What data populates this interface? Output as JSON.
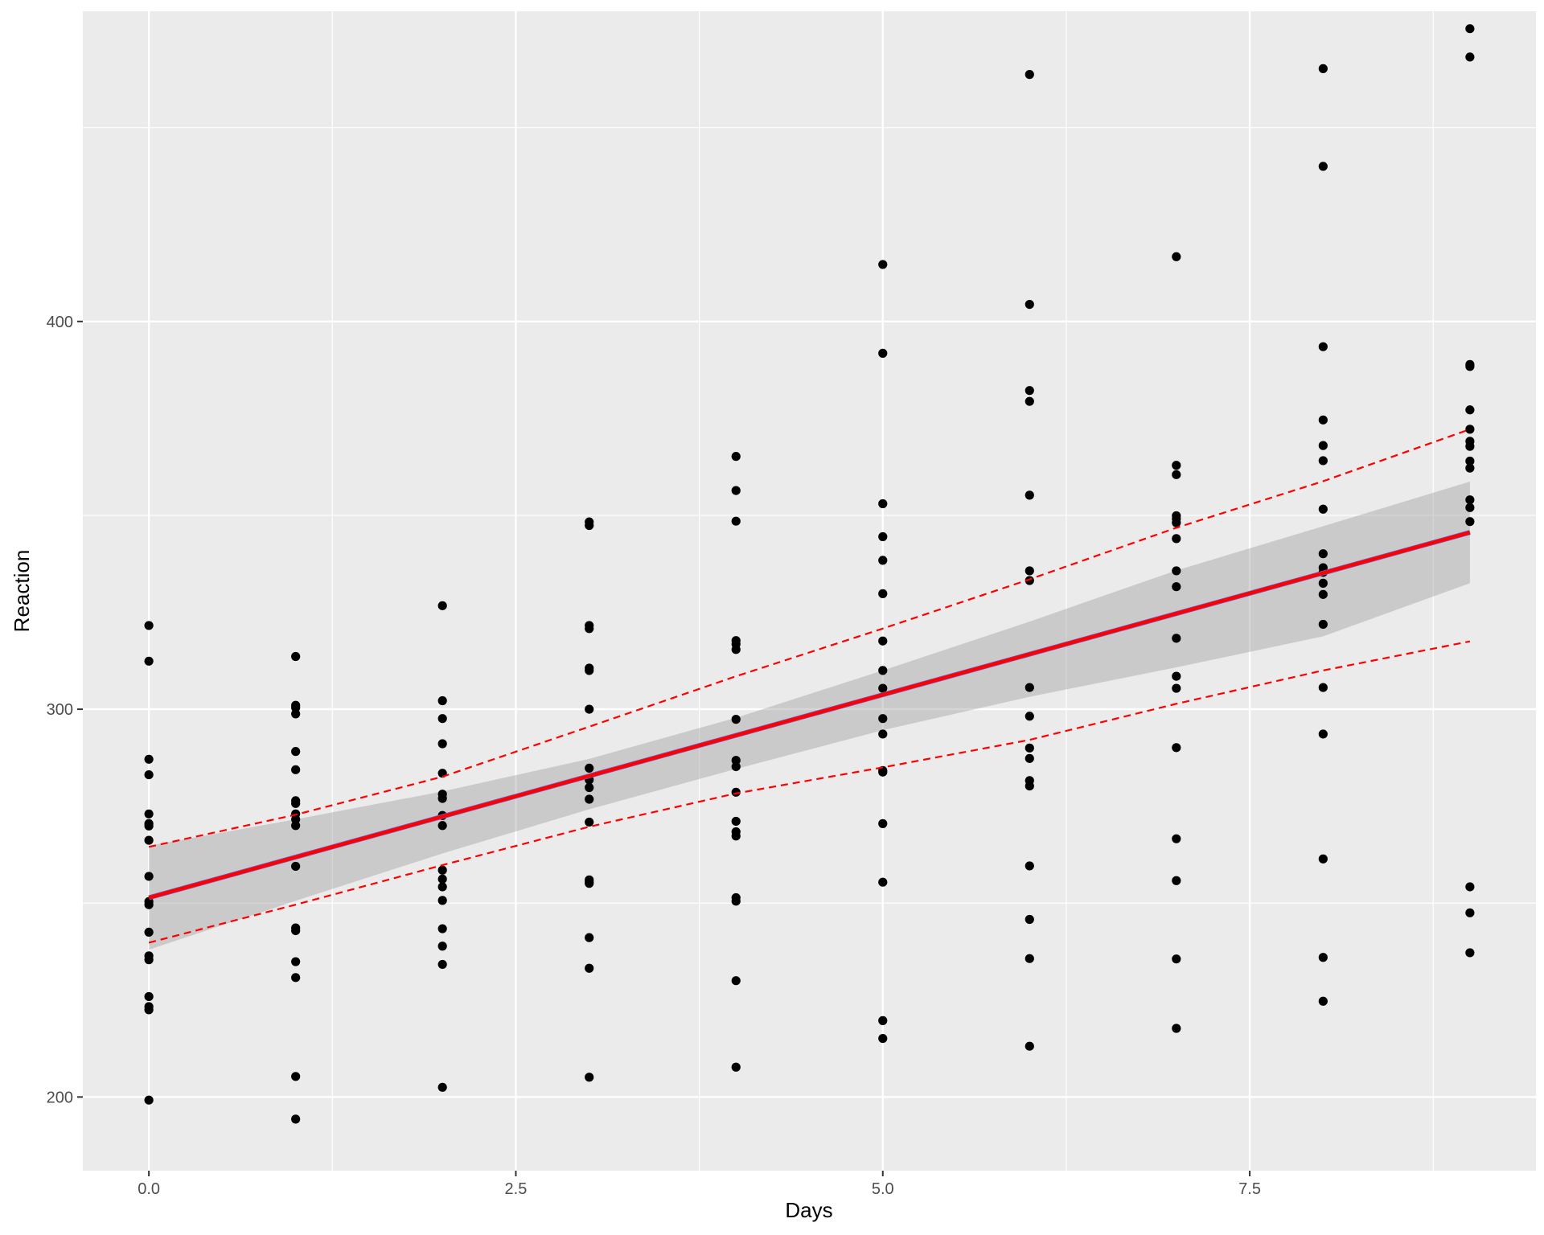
{
  "chart_data": {
    "type": "scatter",
    "title": "",
    "xlabel": "Days",
    "ylabel": "Reaction",
    "xlim": [
      -0.45,
      9.45
    ],
    "ylim": [
      181,
      480
    ],
    "x_ticks": [
      0,
      2.5,
      5,
      7.5
    ],
    "x_tick_labels": [
      "0.0",
      "2.5",
      "5.0",
      "7.5"
    ],
    "x_minor_ticks": [
      1.25,
      3.75,
      6.25,
      8.75
    ],
    "y_ticks": [
      200,
      300,
      400
    ],
    "y_tick_labels": [
      "200",
      "300",
      "400"
    ],
    "y_minor_ticks": [
      250,
      350,
      450
    ],
    "grid": true,
    "background": "#ebebeb",
    "gridline_color": "#ffffff",
    "point_color": "#000000",
    "fit_color": "#ff0000",
    "band_color": "#999999",
    "points": [
      {
        "x": 0,
        "y": [
          321.6,
          312.4,
          287.1,
          283.1,
          273.0,
          270.5,
          269.9,
          266.2,
          256.9,
          250.4,
          249.6,
          242.5,
          236.4,
          235.4,
          225.9,
          223.3,
          222.5,
          199.2
        ]
      },
      {
        "x": 1,
        "y": [
          313.6,
          301.0,
          300.4,
          298.8,
          289.1,
          284.4,
          276.4,
          275.7,
          273.0,
          271.6,
          270.0,
          259.5,
          243.6,
          242.9,
          234.9,
          230.8,
          205.3,
          194.3
        ]
      },
      {
        "x": 2,
        "y": [
          326.7,
          302.2,
          297.6,
          291.1,
          283.5,
          278.1,
          277.0,
          272.6,
          270.0,
          258.5,
          256.2,
          254.2,
          250.7,
          243.4,
          238.9,
          234.2,
          202.5
        ]
      },
      {
        "x": 3,
        "y": [
          348.3,
          347.4,
          321.6,
          320.8,
          310.6,
          310.0,
          300.0,
          284.8,
          281.8,
          279.8,
          276.8,
          270.9,
          256.0,
          255.5,
          255.1,
          241.1,
          233.2,
          205.1
        ]
      },
      {
        "x": 4,
        "y": [
          365.2,
          356.4,
          348.5,
          317.7,
          316.8,
          315.4,
          297.4,
          286.8,
          285.2,
          278.6,
          271.1,
          268.4,
          267.3,
          251.4,
          250.5,
          230.0,
          207.7
        ]
      },
      {
        "x": 5,
        "y": [
          414.7,
          391.8,
          353.0,
          344.5,
          338.4,
          329.8,
          317.6,
          310.0,
          305.4,
          297.6,
          293.6,
          284.2,
          283.8,
          270.5,
          255.4,
          219.7,
          215.1
        ]
      },
      {
        "x": 6,
        "y": [
          463.7,
          404.4,
          382.2,
          379.4,
          355.2,
          335.7,
          333.2,
          305.6,
          298.2,
          290.0,
          287.3,
          281.6,
          280.2,
          259.6,
          245.8,
          235.7,
          213.1
        ]
      },
      {
        "x": 7,
        "y": [
          416.7,
          362.9,
          360.5,
          349.9,
          349.1,
          348.1,
          344.0,
          335.7,
          331.6,
          318.3,
          308.5,
          305.4,
          290.1,
          266.6,
          255.8,
          235.6,
          217.7
        ]
      },
      {
        "x": 8,
        "y": [
          465.2,
          440.0,
          393.5,
          374.6,
          368.0,
          364.1,
          351.6,
          340.1,
          336.5,
          335.3,
          332.5,
          329.6,
          321.9,
          305.6,
          293.6,
          261.4,
          236.0,
          224.7
        ]
      },
      {
        "x": 9,
        "y": [
          475.5,
          468.2,
          388.9,
          388.4,
          377.2,
          372.2,
          369.1,
          367.8,
          364.0,
          362.2,
          354.0,
          352.0,
          348.4,
          254.2,
          247.5,
          237.2
        ]
      }
    ],
    "fit_line": {
      "x": [
        0,
        9
      ],
      "y": [
        251.4,
        345.6
      ]
    },
    "confidence_band": {
      "x": [
        0,
        1,
        2,
        3,
        4,
        5,
        6,
        7,
        8,
        9
      ],
      "lower": [
        238.0,
        250.6,
        262.8,
        274.2,
        284.6,
        294.6,
        303.2,
        310.8,
        318.8,
        332.5
      ],
      "upper": [
        264.8,
        271.6,
        278.8,
        287.2,
        297.8,
        310.0,
        322.6,
        335.8,
        347.2,
        358.7
      ]
    },
    "prediction_upper": {
      "x": [
        0,
        1,
        2,
        3,
        4,
        5,
        6,
        7,
        8,
        9
      ],
      "y": [
        264.5,
        272.8,
        282.6,
        295.5,
        308.5,
        320.8,
        333.5,
        346.8,
        358.8,
        372.2
      ]
    },
    "prediction_lower": {
      "x": [
        0,
        1,
        2,
        3,
        4,
        5,
        6,
        7,
        8,
        9
      ],
      "y": [
        239.8,
        249.6,
        259.8,
        269.7,
        278.3,
        285.0,
        292.1,
        301.4,
        310.0,
        317.5
      ]
    }
  }
}
